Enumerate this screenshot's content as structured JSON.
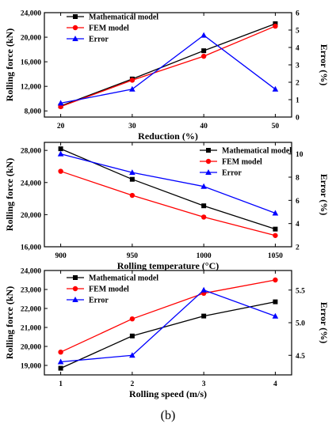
{
  "caption": "(b)",
  "colors": {
    "mathematical": "#000000",
    "fem": "#ff0000",
    "error": "#0000ff"
  },
  "chart_data": [
    {
      "type": "line",
      "xlabel": "Reduction (%)",
      "ylabel_left": "Rolling force (kN)",
      "ylabel_right": "Error (%)",
      "x": [
        20,
        30,
        40,
        50
      ],
      "xticks": [
        "20",
        "30",
        "40",
        "50"
      ],
      "ylim_left": [
        7000,
        24000
      ],
      "yticks_left": [
        "8,000",
        "12,000",
        "16,000",
        "20,000",
        "24,000"
      ],
      "ylim_right": [
        0,
        6
      ],
      "yticks_right": [
        "0",
        "1",
        "2",
        "3",
        "4",
        "5",
        "6"
      ],
      "legend": "top-left",
      "series": [
        {
          "name": "Mathematical model",
          "axis": "left",
          "marker": "square",
          "values": [
            8800,
            13200,
            17800,
            22200
          ]
        },
        {
          "name": "FEM model",
          "axis": "left",
          "marker": "circle",
          "values": [
            8700,
            13000,
            16900,
            21800
          ]
        },
        {
          "name": "Error",
          "axis": "right",
          "marker": "triangle",
          "values": [
            0.8,
            1.6,
            4.7,
            1.6
          ]
        }
      ]
    },
    {
      "type": "line",
      "xlabel": "Rolling temperature (°C)",
      "ylabel_left": "Rolling force (kN)",
      "ylabel_right": "Error (%)",
      "x": [
        900,
        950,
        1000,
        1050
      ],
      "xticks": [
        "900",
        "950",
        "1000",
        "1050"
      ],
      "ylim_left": [
        16000,
        29000
      ],
      "yticks_left": [
        "16,000",
        "20,000",
        "24,000",
        "28,000"
      ],
      "ylim_right": [
        2,
        11
      ],
      "yticks_right": [
        "2",
        "4",
        "6",
        "8",
        "10"
      ],
      "legend": "top-right",
      "series": [
        {
          "name": "Mathematical model",
          "axis": "left",
          "marker": "square",
          "values": [
            28200,
            24400,
            21100,
            18200
          ]
        },
        {
          "name": "FEM model",
          "axis": "left",
          "marker": "circle",
          "values": [
            25400,
            22400,
            19700,
            17400
          ]
        },
        {
          "name": "Error",
          "axis": "right",
          "marker": "triangle",
          "values": [
            10.0,
            8.4,
            7.2,
            4.9
          ]
        }
      ]
    },
    {
      "type": "line",
      "xlabel": "Rolling speed (m/s)",
      "ylabel_left": "Rolling force (kN)",
      "ylabel_right": "Error (%)",
      "x": [
        1,
        2,
        3,
        4
      ],
      "xticks": [
        "1",
        "2",
        "3",
        "4"
      ],
      "ylim_left": [
        18500,
        24000
      ],
      "yticks_left": [
        "19,000",
        "20,000",
        "21,000",
        "22,000",
        "23,000",
        "24,000"
      ],
      "ylim_right": [
        4.2,
        5.8
      ],
      "yticks_right": [
        "4.5",
        "5.0",
        "5.5"
      ],
      "legend": "top-left",
      "series": [
        {
          "name": "Mathematical model",
          "axis": "left",
          "marker": "square",
          "values": [
            18850,
            20550,
            21600,
            22350
          ]
        },
        {
          "name": "FEM model",
          "axis": "left",
          "marker": "circle",
          "values": [
            19700,
            21450,
            22800,
            23500
          ]
        },
        {
          "name": "Error",
          "axis": "right",
          "marker": "triangle",
          "values": [
            4.4,
            4.5,
            5.5,
            5.1
          ]
        }
      ]
    }
  ]
}
